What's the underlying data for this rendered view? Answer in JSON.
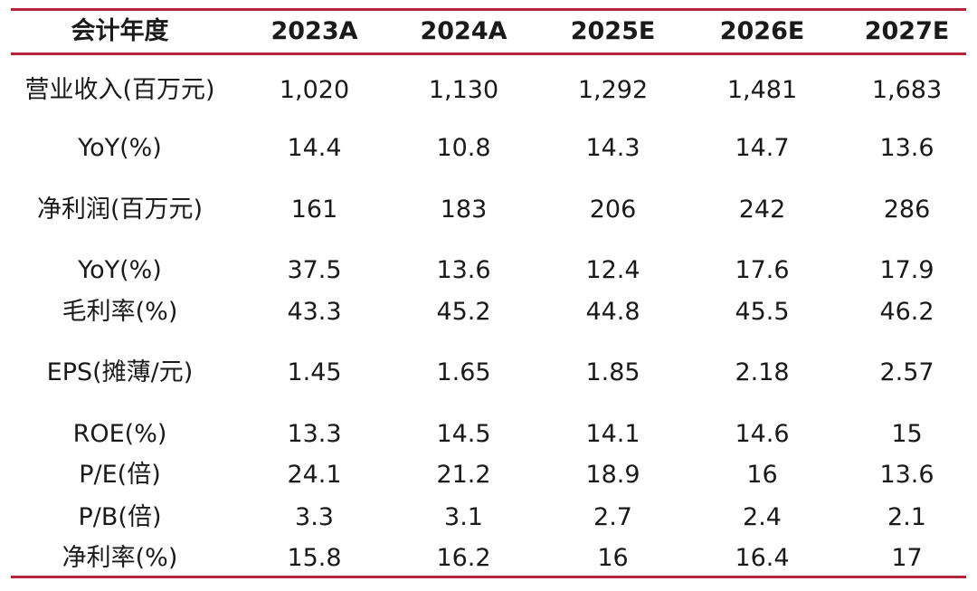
{
  "table": {
    "header": [
      "会计年度",
      "2023A",
      "2024A",
      "2025E",
      "2026E",
      "2027E"
    ],
    "rows": [
      [
        "营业收入(百万元)",
        "1,020",
        "1,130",
        "1,292",
        "1,481",
        "1,683"
      ],
      [
        "YoY(%)",
        "14.4",
        "10.8",
        "14.3",
        "14.7",
        "13.6"
      ],
      [
        "净利润(百万元)",
        "161",
        "183",
        "206",
        "242",
        "286"
      ],
      [
        "YoY(%)",
        "37.5",
        "13.6",
        "12.4",
        "17.6",
        "17.9"
      ],
      [
        "毛利率(%)",
        "43.3",
        "45.2",
        "44.8",
        "45.5",
        "46.2"
      ],
      [
        "EPS(摊薄/元)",
        "1.45",
        "1.65",
        "1.85",
        "2.18",
        "2.57"
      ],
      [
        "ROE(%)",
        "13.3",
        "14.5",
        "14.1",
        "14.6",
        "15"
      ],
      [
        "P/E(倍)",
        "24.1",
        "21.2",
        "18.9",
        "16",
        "13.6"
      ],
      [
        "P/B(倍)",
        "3.3",
        "3.1",
        "2.7",
        "2.4",
        "2.1"
      ],
      [
        "净利率(%)",
        "15.8",
        "16.2",
        "16",
        "16.4",
        "17"
      ]
    ]
  },
  "colors": {
    "rule": "#b5243a",
    "text": "#1a1a1a"
  }
}
